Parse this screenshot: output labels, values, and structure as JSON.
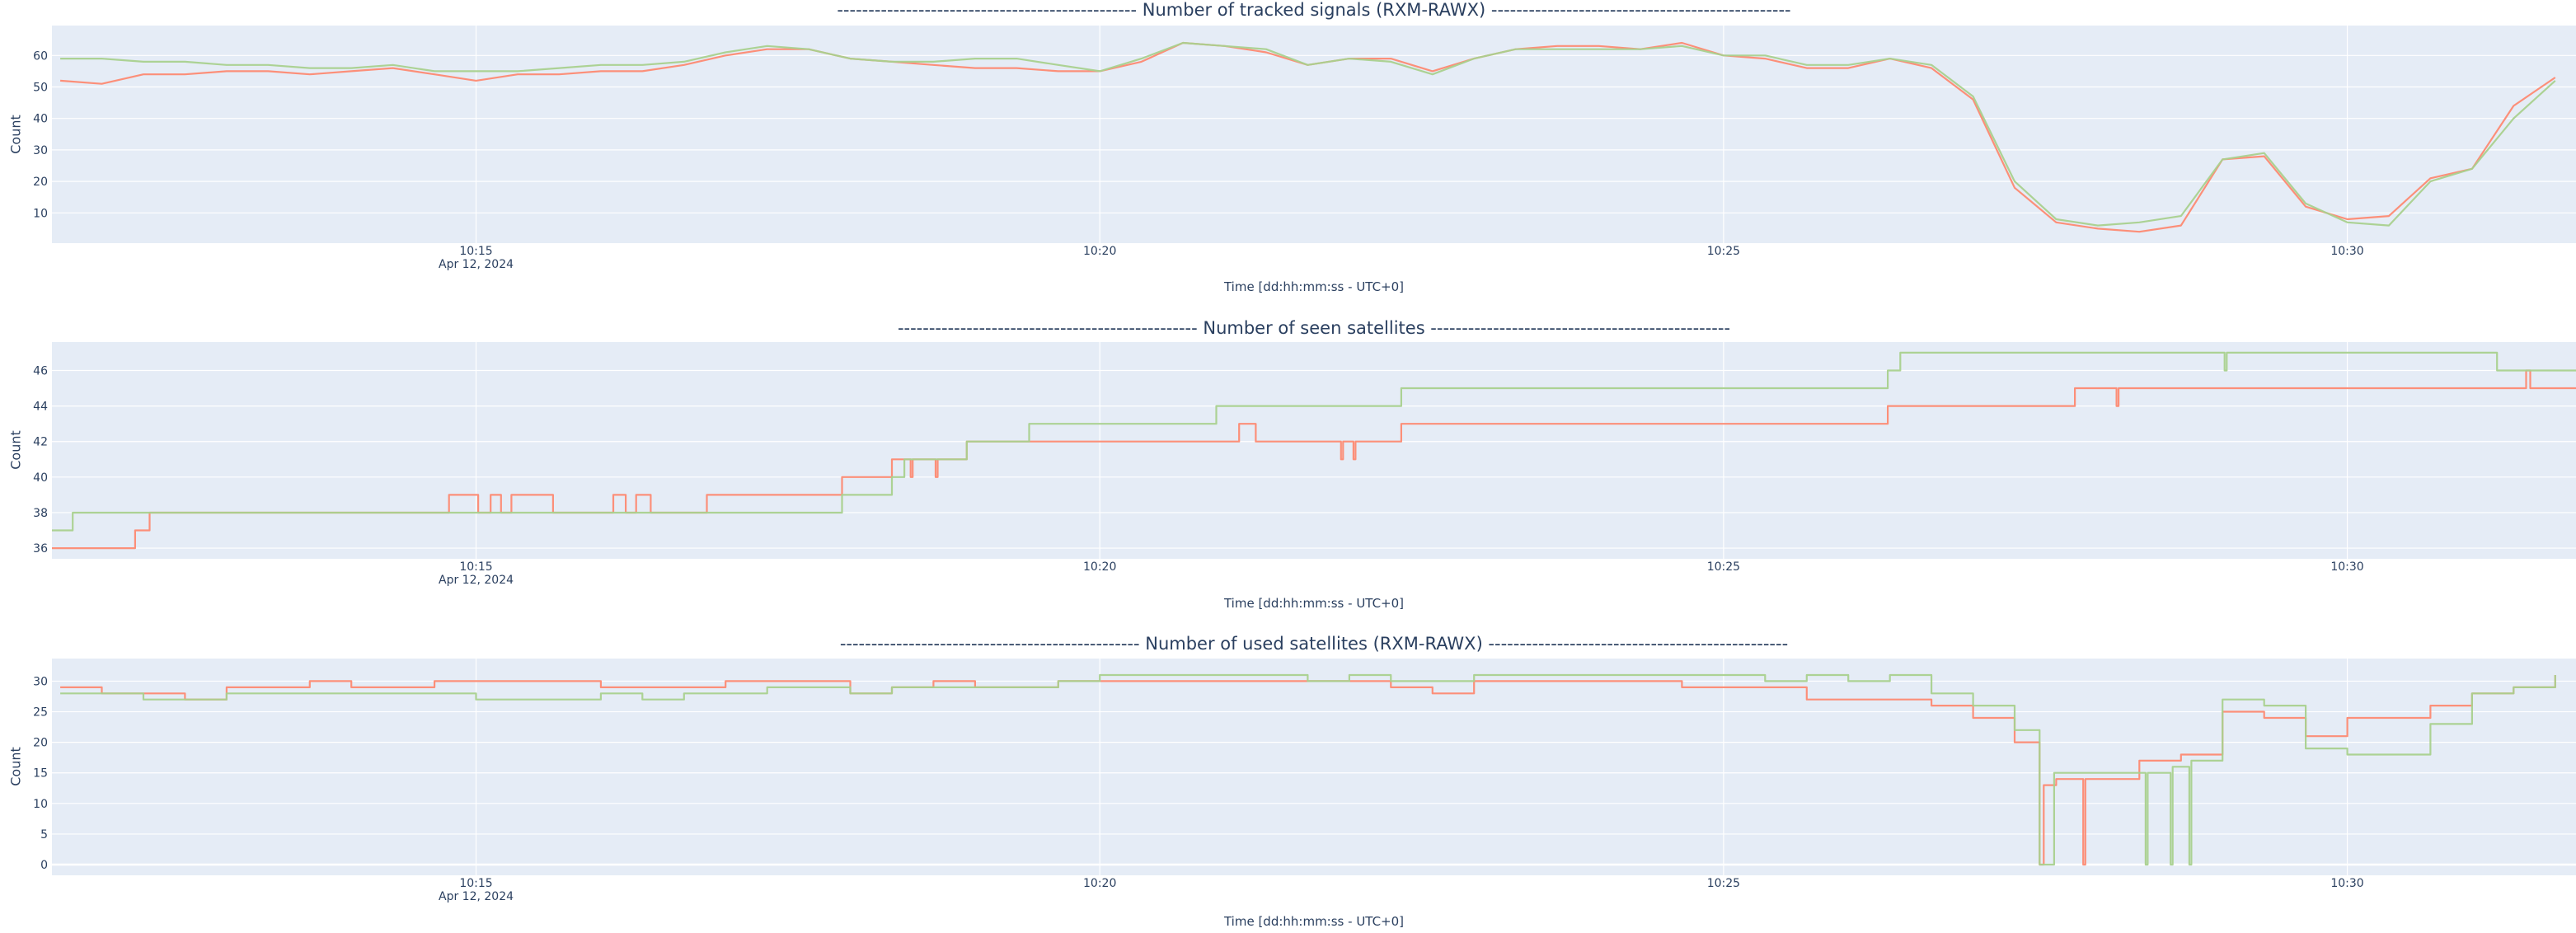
{
  "chart_data": [
    {
      "type": "line",
      "title": "------------------------------------------------  Number of tracked signals (RXM-RAWX)  ------------------------------------------------",
      "xlabel": "Time [dd:hh:mm:ss - UTC+0]",
      "ylabel": "Count",
      "date_label": "Apr 12, 2024",
      "xlim": [
        "10:11:36",
        "10:31:50"
      ],
      "ylim": [
        0.4,
        69.5
      ],
      "xticks": [
        "10:15",
        "10:20",
        "10:25",
        "10:30"
      ],
      "yticks": [
        10,
        20,
        30,
        40,
        50,
        60
      ],
      "grid": true,
      "shape": "linear",
      "x": [
        "10:11:40",
        "10:12:00",
        "10:12:20",
        "10:12:40",
        "10:13:00",
        "10:13:20",
        "10:13:40",
        "10:14:00",
        "10:14:20",
        "10:14:40",
        "10:15:00",
        "10:15:20",
        "10:15:40",
        "10:16:00",
        "10:16:20",
        "10:16:40",
        "10:17:00",
        "10:17:20",
        "10:17:40",
        "10:18:00",
        "10:18:20",
        "10:18:40",
        "10:19:00",
        "10:19:20",
        "10:19:40",
        "10:20:00",
        "10:20:20",
        "10:20:40",
        "10:21:00",
        "10:21:20",
        "10:21:40",
        "10:22:00",
        "10:22:20",
        "10:22:40",
        "10:23:00",
        "10:23:20",
        "10:23:40",
        "10:24:00",
        "10:24:20",
        "10:24:40",
        "10:25:00",
        "10:25:20",
        "10:25:40",
        "10:26:00",
        "10:26:20",
        "10:26:40",
        "10:27:00",
        "10:27:20",
        "10:27:40",
        "10:28:00",
        "10:28:20",
        "10:28:40",
        "10:29:00",
        "10:29:20",
        "10:29:40",
        "10:30:00",
        "10:30:20",
        "10:30:40",
        "10:31:00",
        "10:31:20",
        "10:31:40"
      ],
      "series": [
        {
          "color": "#fd8a72",
          "values": [
            52,
            51,
            54,
            54,
            55,
            55,
            54,
            55,
            56,
            54,
            52,
            54,
            54,
            55,
            55,
            57,
            60,
            62,
            62,
            59,
            58,
            57,
            56,
            56,
            55,
            55,
            58,
            64,
            63,
            61,
            57,
            59,
            59,
            55,
            59,
            62,
            63,
            63,
            62,
            64,
            60,
            59,
            56,
            56,
            59,
            56,
            46,
            18,
            7,
            5,
            4,
            6,
            27,
            28,
            12,
            8,
            9,
            21,
            24,
            44,
            53
          ]
        },
        {
          "color": "#a9d18e",
          "values": [
            59,
            59,
            58,
            58,
            57,
            57,
            56,
            56,
            57,
            55,
            55,
            55,
            56,
            57,
            57,
            58,
            61,
            63,
            62,
            59,
            58,
            58,
            59,
            59,
            57,
            55,
            59,
            64,
            63,
            62,
            57,
            59,
            58,
            54,
            59,
            62,
            62,
            62,
            62,
            63,
            60,
            60,
            57,
            57,
            59,
            57,
            47,
            20,
            8,
            6,
            7,
            9,
            27,
            29,
            13,
            7,
            6,
            20,
            24,
            40,
            52
          ]
        }
      ]
    },
    {
      "type": "line",
      "title": "------------------------------------------------  Number of seen satellites  ------------------------------------------------",
      "xlabel": "Time [dd:hh:mm:ss - UTC+0]",
      "ylabel": "Count",
      "date_label": "Apr 12, 2024",
      "xlim": [
        "10:11:36",
        "10:31:50"
      ],
      "ylim": [
        35.4,
        47.6
      ],
      "xticks": [
        "10:15",
        "10:20",
        "10:25",
        "10:30"
      ],
      "yticks": [
        36,
        38,
        40,
        42,
        44,
        46
      ],
      "grid": true,
      "shape": "step",
      "series": [
        {
          "color": "#fd8a72",
          "points": [
            [
              "10:11:36",
              36
            ],
            [
              "10:12:16",
              37
            ],
            [
              "10:12:23",
              38
            ],
            [
              "10:14:47",
              39
            ],
            [
              "10:15:01",
              38
            ],
            [
              "10:15:07",
              39
            ],
            [
              "10:15:12",
              38
            ],
            [
              "10:15:17",
              39
            ],
            [
              "10:15:37",
              38
            ],
            [
              "10:16:06",
              39
            ],
            [
              "10:16:12",
              38
            ],
            [
              "10:16:17",
              39
            ],
            [
              "10:16:24",
              38
            ],
            [
              "10:16:51",
              39
            ],
            [
              "10:17:56",
              40
            ],
            [
              "10:18:20",
              41
            ],
            [
              "10:18:29",
              40
            ],
            [
              "10:18:30",
              41
            ],
            [
              "10:18:41",
              40
            ],
            [
              "10:18:42",
              41
            ],
            [
              "10:18:56",
              42
            ],
            [
              "10:21:07",
              43
            ],
            [
              "10:21:15",
              42
            ],
            [
              "10:21:56",
              41
            ],
            [
              "10:21:57",
              42
            ],
            [
              "10:22:02",
              41
            ],
            [
              "10:22:03",
              42
            ],
            [
              "10:22:25",
              43
            ],
            [
              "10:26:19",
              44
            ],
            [
              "10:27:49",
              45
            ],
            [
              "10:28:09",
              44
            ],
            [
              "10:28:10",
              45
            ],
            [
              "10:31:26",
              46
            ],
            [
              "10:31:28",
              45
            ],
            [
              "10:31:50",
              45
            ]
          ]
        },
        {
          "color": "#a9d18e",
          "points": [
            [
              "10:11:36",
              37
            ],
            [
              "10:11:46",
              38
            ],
            [
              "10:17:56",
              39
            ],
            [
              "10:18:20",
              40
            ],
            [
              "10:18:26",
              41
            ],
            [
              "10:18:56",
              42
            ],
            [
              "10:19:26",
              43
            ],
            [
              "10:20:56",
              44
            ],
            [
              "10:22:25",
              45
            ],
            [
              "10:26:19",
              46
            ],
            [
              "10:26:25",
              47
            ],
            [
              "10:29:01",
              46
            ],
            [
              "10:29:02",
              47
            ],
            [
              "10:31:12",
              46
            ],
            [
              "10:31:50",
              46
            ]
          ]
        }
      ]
    },
    {
      "type": "line",
      "title": "------------------------------------------------  Number of used satellites (RXM-RAWX)  ------------------------------------------------",
      "xlabel": "Time [dd:hh:mm:ss - UTC+0]",
      "ylabel": "Count",
      "date_label": "Apr 12, 2024",
      "xlim": [
        "10:11:36",
        "10:31:50"
      ],
      "ylim": [
        -1.75,
        33.7
      ],
      "xticks": [
        "10:15",
        "10:20",
        "10:25",
        "10:30"
      ],
      "yticks": [
        0,
        5,
        10,
        15,
        20,
        25,
        30
      ],
      "grid": true,
      "shape": "step",
      "x": [
        "10:11:40",
        "10:12:00",
        "10:12:20",
        "10:12:40",
        "10:13:00",
        "10:13:20",
        "10:13:40",
        "10:14:00",
        "10:14:20",
        "10:14:40",
        "10:15:00",
        "10:15:20",
        "10:15:40",
        "10:16:00",
        "10:16:20",
        "10:16:40",
        "10:17:00",
        "10:17:20",
        "10:17:40",
        "10:18:00",
        "10:18:20",
        "10:18:40",
        "10:19:00",
        "10:19:20",
        "10:19:40",
        "10:20:00",
        "10:20:20",
        "10:20:40",
        "10:21:00",
        "10:21:20",
        "10:21:40",
        "10:22:00",
        "10:22:20",
        "10:22:40",
        "10:23:00",
        "10:23:20",
        "10:23:40",
        "10:24:00",
        "10:24:20",
        "10:24:40",
        "10:25:00",
        "10:25:20",
        "10:25:40",
        "10:26:00",
        "10:26:20",
        "10:26:40",
        "10:27:00",
        "10:27:20",
        "10:27:40",
        "10:28:00",
        "10:28:20",
        "10:28:40",
        "10:29:00",
        "10:29:20",
        "10:29:40",
        "10:30:00",
        "10:30:20",
        "10:30:40",
        "10:31:00",
        "10:31:20",
        "10:31:40"
      ],
      "series": [
        {
          "color": "#fd8a72",
          "values": [
            29,
            28,
            28,
            27,
            29,
            29,
            30,
            29,
            29,
            30,
            30,
            30,
            30,
            29,
            29,
            29,
            30,
            30,
            30,
            28,
            29,
            30,
            29,
            29,
            30,
            30,
            30,
            30,
            30,
            30,
            30,
            30,
            29,
            28,
            30,
            30,
            30,
            30,
            30,
            29,
            29,
            29,
            27,
            27,
            27,
            26,
            24,
            20,
            14,
            14,
            17,
            18,
            25,
            24,
            21,
            24,
            24,
            26,
            28,
            29,
            31
          ],
          "extra_points": [
            [
              "10:27:32",
              0
            ],
            [
              "10:27:34",
              13
            ],
            [
              "10:27:53",
              0
            ],
            [
              "10:27:54",
              14
            ]
          ]
        },
        {
          "color": "#a9d18e",
          "values": [
            28,
            28,
            27,
            27,
            28,
            28,
            28,
            28,
            28,
            28,
            27,
            27,
            27,
            28,
            27,
            28,
            28,
            29,
            29,
            28,
            29,
            29,
            29,
            29,
            30,
            31,
            31,
            31,
            31,
            31,
            30,
            31,
            30,
            30,
            31,
            31,
            31,
            31,
            31,
            31,
            31,
            30,
            31,
            30,
            31,
            28,
            26,
            22,
            15,
            15,
            15,
            16,
            27,
            26,
            19,
            18,
            18,
            23,
            28,
            29,
            31
          ],
          "extra_points": [
            [
              "10:27:32",
              0
            ],
            [
              "10:27:39",
              15
            ],
            [
              "10:28:23",
              0
            ],
            [
              "10:28:24",
              15
            ],
            [
              "10:28:35",
              0
            ],
            [
              "10:28:36",
              16
            ],
            [
              "10:28:44",
              0
            ],
            [
              "10:28:45",
              17
            ]
          ]
        }
      ]
    }
  ],
  "colors": {
    "plot_background": "#e5ecf6",
    "grid": "#ffffff",
    "text": "#2a3f5f"
  }
}
